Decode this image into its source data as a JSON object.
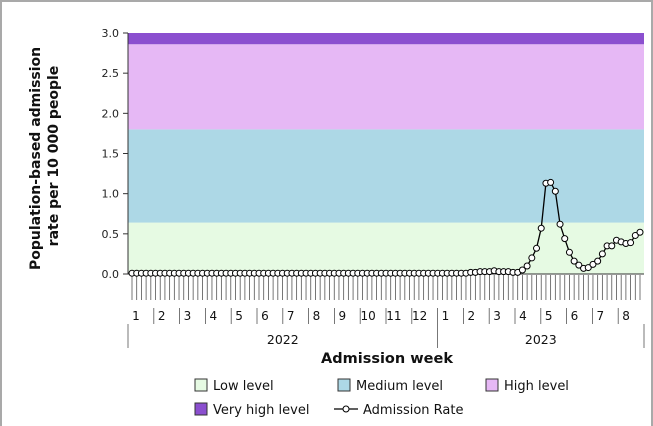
{
  "chart_data": {
    "type": "line",
    "xlabel": "Admission week",
    "ylabel_lines": [
      "Population-based admission",
      "rate per 10 000 people"
    ],
    "ylim": [
      0,
      3.0
    ],
    "yticks": [
      "0.0",
      "0.5",
      "1.0",
      "1.5",
      "2.0",
      "2.5",
      "3.0"
    ],
    "grid": false,
    "legend_position": "bottom",
    "bands": [
      {
        "name": "Low level",
        "from": 0,
        "to": 0.64,
        "color": "#e6fae3"
      },
      {
        "name": "Medium level",
        "from": 0.64,
        "to": 1.8,
        "color": "#add8e6"
      },
      {
        "name": "High level",
        "from": 1.8,
        "to": 2.86,
        "color": "#e6b8f5"
      },
      {
        "name": "Very high level",
        "from": 2.86,
        "to": 3.0,
        "color": "#8b4fcf"
      }
    ],
    "months": [
      {
        "label": "1",
        "year": "2022"
      },
      {
        "label": "2",
        "year": "2022"
      },
      {
        "label": "3",
        "year": "2022"
      },
      {
        "label": "4",
        "year": "2022"
      },
      {
        "label": "5",
        "year": "2022"
      },
      {
        "label": "6",
        "year": "2022"
      },
      {
        "label": "7",
        "year": "2022"
      },
      {
        "label": "8",
        "year": "2022"
      },
      {
        "label": "9",
        "year": "2022"
      },
      {
        "label": "10",
        "year": "2022"
      },
      {
        "label": "11",
        "year": "2022"
      },
      {
        "label": "12",
        "year": "2022"
      },
      {
        "label": "1",
        "year": "2023"
      },
      {
        "label": "2",
        "year": "2023"
      },
      {
        "label": "3",
        "year": "2023"
      },
      {
        "label": "4",
        "year": "2023"
      },
      {
        "label": "5",
        "year": "2023"
      },
      {
        "label": "6",
        "year": "2023"
      },
      {
        "label": "7",
        "year": "2023"
      },
      {
        "label": "8",
        "year": "2023"
      }
    ],
    "years": [
      "2022",
      "2023"
    ],
    "series": [
      {
        "name": "Admission Rate",
        "color": "#000000",
        "values": [
          0.01,
          0.01,
          0.01,
          0.01,
          0.01,
          0.01,
          0.01,
          0.01,
          0.01,
          0.01,
          0.01,
          0.01,
          0.01,
          0.01,
          0.01,
          0.01,
          0.01,
          0.01,
          0.01,
          0.01,
          0.01,
          0.01,
          0.01,
          0.01,
          0.01,
          0.01,
          0.01,
          0.01,
          0.01,
          0.01,
          0.01,
          0.01,
          0.01,
          0.01,
          0.01,
          0.01,
          0.01,
          0.01,
          0.01,
          0.01,
          0.01,
          0.01,
          0.01,
          0.01,
          0.01,
          0.01,
          0.01,
          0.01,
          0.01,
          0.01,
          0.01,
          0.01,
          0.01,
          0.01,
          0.01,
          0.01,
          0.01,
          0.01,
          0.01,
          0.01,
          0.01,
          0.01,
          0.01,
          0.01,
          0.01,
          0.01,
          0.01,
          0.01,
          0.01,
          0.01,
          0.01,
          0.01,
          0.02,
          0.02,
          0.03,
          0.03,
          0.03,
          0.04,
          0.03,
          0.03,
          0.03,
          0.02,
          0.02,
          0.05,
          0.1,
          0.2,
          0.32,
          0.57,
          1.13,
          1.14,
          1.03,
          0.62,
          0.44,
          0.27,
          0.16,
          0.11,
          0.07,
          0.08,
          0.12,
          0.16,
          0.25,
          0.35,
          0.35,
          0.42,
          0.4,
          0.38,
          0.39,
          0.48,
          0.52
        ]
      }
    ]
  },
  "legend": {
    "items": [
      {
        "label": "Low level",
        "kind": "box",
        "color": "#e6fae3"
      },
      {
        "label": "Medium level",
        "kind": "box",
        "color": "#add8e6"
      },
      {
        "label": "High level",
        "kind": "box",
        "color": "#e6b8f5"
      },
      {
        "label": "Very high level",
        "kind": "box",
        "color": "#8b4fcf"
      },
      {
        "label": "Admission Rate",
        "kind": "line-marker",
        "color": "#000000"
      }
    ]
  },
  "colors": {
    "axis": "#333333",
    "frame_border": "#a9a9a9"
  }
}
